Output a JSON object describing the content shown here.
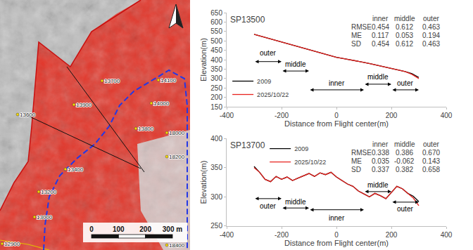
{
  "chart_data": [
    {
      "type": "map",
      "scale_ticks": [
        0,
        100,
        200,
        {
          "value": 300,
          "label": "300 m"
        }
      ],
      "labels": [
        "13600",
        "13900",
        "13700",
        "14100",
        "14000",
        "13800",
        "13400",
        "13200",
        "13000",
        "12900",
        "18000",
        "18200",
        "18400"
      ]
    },
    {
      "type": "line",
      "title": "SP13500",
      "x_label": "Distance from Flight center(m)",
      "y_label": "Elevation(m)",
      "xlim": [
        -400,
        400
      ],
      "xticks": [
        -400,
        -200,
        0,
        200,
        400
      ],
      "ylim": [
        150,
        650
      ],
      "yticks": [
        150,
        200,
        250,
        300,
        350,
        400,
        450,
        500,
        550,
        600,
        650
      ],
      "grid": false,
      "legend": "lower left",
      "x": [
        -300,
        -275,
        -250,
        -225,
        -200,
        -175,
        -150,
        -125,
        -100,
        -75,
        -50,
        -25,
        0,
        25,
        50,
        75,
        100,
        125,
        150,
        175,
        200,
        225,
        250,
        275,
        300
      ],
      "series": [
        {
          "name": "2009",
          "color": "#000000",
          "values": [
            535,
            525,
            514,
            503,
            492,
            483,
            472,
            462,
            452,
            442,
            433,
            423,
            413,
            406,
            400,
            393,
            386,
            378,
            370,
            360,
            352,
            344,
            337,
            326,
            306
          ]
        },
        {
          "name": "2025/10/22",
          "color": "#e8231f",
          "values": [
            535,
            525,
            514,
            503,
            492,
            483,
            472,
            462,
            452,
            442,
            433,
            423,
            413,
            406,
            400,
            393,
            386,
            378,
            370,
            360,
            352,
            344,
            337,
            322,
            300
          ]
        }
      ],
      "zones": [
        {
          "label": "outer",
          "x0": -300,
          "x1": -200,
          "y": 390,
          "label_y": 435
        },
        {
          "label": "middle",
          "x0": -200,
          "x1": -100,
          "y": 340,
          "label_y": 375
        },
        {
          "label": "inner",
          "x0": -100,
          "x1": 100,
          "y": 240,
          "label_y": 275
        },
        {
          "label": "middle",
          "x0": 100,
          "x1": 200,
          "y": 270,
          "label_y": 310
        },
        {
          "label": "outer",
          "x0": 200,
          "x1": 300,
          "y": 240,
          "label_y": 275
        }
      ],
      "stats": {
        "columns": [
          "inner",
          "middle",
          "outer"
        ],
        "rows": [
          {
            "name": "RMSE",
            "values": [
              0.454,
              0.612,
              0.463
            ]
          },
          {
            "name": "ME",
            "values": [
              0.117,
              0.053,
              0.194
            ]
          },
          {
            "name": "SD",
            "values": [
              0.454,
              0.612,
              0.463
            ]
          }
        ]
      }
    },
    {
      "type": "line",
      "title": "SP13700",
      "x_label": "Distance from Flight center(m)",
      "y_label": "Elevation(m)",
      "xlim": [
        -400,
        400
      ],
      "xticks": [
        -400,
        -200,
        0,
        200,
        400
      ],
      "ylim": [
        250,
        400
      ],
      "yticks": [
        250,
        300,
        350,
        400
      ],
      "grid": false,
      "legend": "upper left",
      "x": [
        -300,
        -280,
        -260,
        -240,
        -220,
        -200,
        -180,
        -160,
        -140,
        -120,
        -100,
        -80,
        -60,
        -40,
        -20,
        0,
        20,
        40,
        60,
        80,
        100,
        120,
        140,
        160,
        180,
        200,
        220,
        240,
        260,
        280,
        300
      ],
      "series": [
        {
          "name": "2009",
          "color": "#000000",
          "values": [
            352,
            342,
            330,
            326,
            335,
            330,
            334,
            328,
            332,
            336,
            340,
            335,
            341,
            338,
            342,
            334,
            328,
            322,
            318,
            310,
            305,
            300,
            306,
            302,
            297,
            308,
            318,
            314,
            306,
            301,
            292
          ]
        },
        {
          "name": "2025/10/22",
          "color": "#e8231f",
          "values": [
            350,
            342,
            330,
            326,
            335,
            330,
            334,
            328,
            332,
            336,
            340,
            335,
            341,
            338,
            342,
            334,
            328,
            322,
            318,
            310,
            305,
            300,
            306,
            302,
            297,
            308,
            318,
            314,
            306,
            298,
            285
          ]
        }
      ],
      "zones": [
        {
          "label": "outer",
          "x0": -300,
          "x1": -200,
          "y": 297,
          "label_y": 284
        },
        {
          "label": "middle",
          "x0": -200,
          "x1": -100,
          "y": 281,
          "label_y": 291
        },
        {
          "label": "inner",
          "x0": -100,
          "x1": 100,
          "y": 278,
          "label_y": 264
        },
        {
          "label": "middle",
          "x0": 100,
          "x1": 200,
          "y": 309,
          "label_y": 320
        },
        {
          "label": "outer",
          "x0": 200,
          "x1": 300,
          "y": 291,
          "label_y": 279
        }
      ],
      "stats": {
        "columns": [
          "inner",
          "middle",
          "outer"
        ],
        "rows": [
          {
            "name": "RMSE",
            "values": [
              0.338,
              0.386,
              {
                "value": 0.67,
                "label": "0.670"
              }
            ]
          },
          {
            "name": "ME",
            "values": [
              0.035,
              -0.062,
              0.143
            ]
          },
          {
            "name": "SD",
            "values": [
              0.337,
              0.382,
              0.658
            ]
          }
        ]
      }
    }
  ]
}
